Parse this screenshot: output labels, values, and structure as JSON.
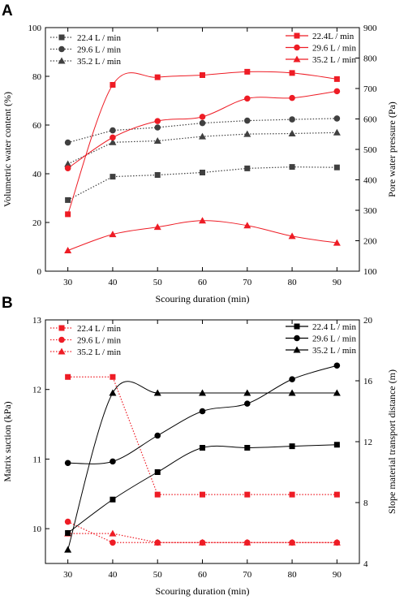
{
  "chart_data": [
    {
      "panel": "A",
      "type": "line",
      "xlabel": "Scouring duration (min)",
      "ylabel_left": "Volumetric water content (%)",
      "ylabel_right": "Pore water pressure (Pa)",
      "x": [
        30,
        40,
        50,
        60,
        70,
        80,
        90
      ],
      "xticks": [
        30,
        40,
        50,
        60,
        70,
        80,
        90
      ],
      "xlim": [
        25,
        95
      ],
      "ylim_left": [
        0,
        100
      ],
      "yticks_left": [
        0,
        20,
        40,
        60,
        80,
        100
      ],
      "ylim_right": [
        100,
        900
      ],
      "yticks_right": [
        100,
        200,
        300,
        400,
        500,
        600,
        700,
        800,
        900
      ],
      "grid": false,
      "legend_left": "top-left",
      "legend_right": "top-right",
      "series": [
        {
          "name": "22.4 L / min",
          "axis": "left",
          "marker": "square",
          "color": "#404040",
          "style": "dotted",
          "values": [
            29.2,
            38.8,
            39.5,
            40.5,
            42.2,
            42.8,
            42.6
          ]
        },
        {
          "name": "29.6 L / min",
          "axis": "left",
          "marker": "circle",
          "color": "#404040",
          "style": "dotted",
          "values": [
            52.8,
            57.8,
            59.0,
            60.8,
            61.8,
            62.3,
            62.7
          ]
        },
        {
          "name": "35.2 L / min",
          "axis": "left",
          "marker": "triangle",
          "color": "#404040",
          "style": "dotted",
          "values": [
            44.0,
            52.9,
            53.5,
            55.3,
            56.3,
            56.5,
            56.9
          ]
        },
        {
          "name": "22.4L / min",
          "axis": "right",
          "marker": "square",
          "color": "#ee1c25",
          "style": "smooth",
          "values": [
            287,
            712,
            737,
            744,
            755,
            751,
            731
          ]
        },
        {
          "name": "29.6 L / min",
          "axis": "right",
          "marker": "circle",
          "color": "#ee1c25",
          "style": "smooth",
          "values": [
            438,
            539,
            593,
            607,
            667,
            669,
            691
          ]
        },
        {
          "name": "35.2 L / min",
          "axis": "right",
          "marker": "triangle",
          "color": "#ee1c25",
          "style": "smooth",
          "values": [
            168,
            221,
            245,
            266,
            250,
            215,
            193
          ]
        }
      ]
    },
    {
      "panel": "B",
      "type": "line",
      "xlabel": "Scouring duration (min)",
      "ylabel_left": "Matrix suction (kPa)",
      "ylabel_right": "Slope material transport distance (m)",
      "x": [
        30,
        40,
        50,
        60,
        70,
        80,
        90
      ],
      "xticks": [
        30,
        40,
        50,
        60,
        70,
        80,
        90
      ],
      "xlim": [
        25,
        95
      ],
      "ylim_left": [
        9.5,
        13
      ],
      "yticks_left": [
        10,
        11,
        12,
        13
      ],
      "ylim_right": [
        4,
        20
      ],
      "yticks_right": [
        4,
        8,
        12,
        16,
        20
      ],
      "grid": false,
      "legend_left": "top-left",
      "legend_right": "top-right",
      "series": [
        {
          "name": "22.4 L / min",
          "axis": "left",
          "marker": "square",
          "color": "#ee1c25",
          "style": "dotted",
          "values": [
            12.18,
            12.18,
            10.49,
            10.49,
            10.49,
            10.49,
            10.49
          ]
        },
        {
          "name": "29.6 L / min",
          "axis": "left",
          "marker": "circle",
          "color": "#ee1c25",
          "style": "dotted",
          "values": [
            10.1,
            9.8,
            9.8,
            9.8,
            9.8,
            9.8,
            9.8
          ]
        },
        {
          "name": "35.2 L / min",
          "axis": "left",
          "marker": "triangle",
          "color": "#ee1c25",
          "style": "dotted",
          "values": [
            9.93,
            9.93,
            9.8,
            9.8,
            9.8,
            9.8,
            9.8
          ]
        },
        {
          "name": "22.4 L / min",
          "axis": "right",
          "marker": "square",
          "color": "#000000",
          "style": "smooth",
          "values": [
            6.0,
            8.2,
            10.0,
            11.6,
            11.6,
            11.7,
            11.8
          ]
        },
        {
          "name": "29.6 L / min",
          "axis": "right",
          "marker": "circle",
          "color": "#000000",
          "style": "smooth",
          "values": [
            10.6,
            10.7,
            12.4,
            14.0,
            14.5,
            16.1,
            17.0
          ]
        },
        {
          "name": "35.2 L / min",
          "axis": "right",
          "marker": "triangle",
          "color": "#000000",
          "style": "smooth",
          "values": [
            4.9,
            15.2,
            15.2,
            15.2,
            15.2,
            15.2,
            15.2
          ]
        }
      ]
    }
  ]
}
